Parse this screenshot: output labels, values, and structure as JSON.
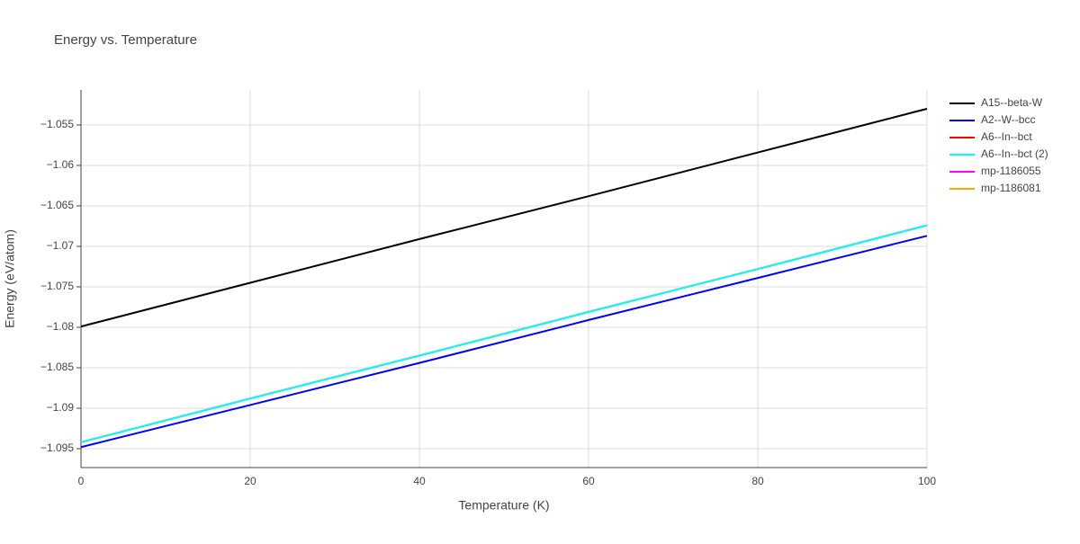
{
  "chart_data": {
    "type": "line",
    "title": "Energy vs. Temperature",
    "x_label": "Temperature (K)",
    "y_label": "Energy (eV/atom)",
    "x": [
      0,
      20,
      40,
      60,
      80,
      100
    ],
    "series": [
      {
        "name": "A15--beta-W",
        "color": "#000000",
        "values": [
          -1.0799,
          -1.0745,
          -1.0691,
          -1.0638,
          -1.0584,
          -1.053
        ]
      },
      {
        "name": "A2--W--bcc",
        "color": "#0000ff",
        "values": [
          -1.0948,
          -1.0896,
          -1.0844,
          -1.0791,
          -1.0739,
          -1.0687
        ]
      },
      {
        "name": "A6--In--bct",
        "color": "#ff0000",
        "values": [
          -1.0942,
          -1.0888,
          -1.0835,
          -1.0781,
          -1.0728,
          -1.0674
        ]
      },
      {
        "name": "A6--In--bct (2)",
        "color": "#00ffff",
        "values": [
          -1.0942,
          -1.0888,
          -1.0835,
          -1.0781,
          -1.0728,
          -1.0674
        ]
      },
      {
        "name": "mp-1186055",
        "color": "#ff00ff",
        "values": [
          null,
          null,
          null,
          null,
          null,
          null
        ]
      },
      {
        "name": "mp-1186081",
        "color": "#ffa500",
        "values": [
          null,
          null,
          null,
          null,
          null,
          null
        ]
      }
    ],
    "xlim": [
      0,
      100
    ],
    "xticks": [
      0,
      20,
      40,
      60,
      80,
      100
    ],
    "ylim": [
      -1.09733,
      -1.05067
    ],
    "yticks": [
      {
        "value": -1.095,
        "label": "−1.095"
      },
      {
        "value": -1.09,
        "label": "−1.09"
      },
      {
        "value": -1.085,
        "label": "−1.085"
      },
      {
        "value": -1.08,
        "label": "−1.08"
      },
      {
        "value": -1.075,
        "label": "−1.075"
      },
      {
        "value": -1.07,
        "label": "−1.07"
      },
      {
        "value": -1.065,
        "label": "−1.065"
      },
      {
        "value": -1.06,
        "label": "−1.06"
      },
      {
        "value": -1.055,
        "label": "−1.055"
      }
    ],
    "grid": true,
    "legend": "right"
  }
}
